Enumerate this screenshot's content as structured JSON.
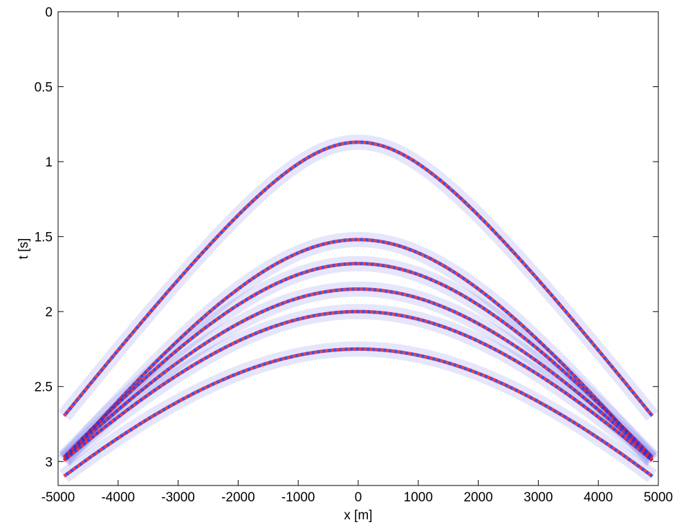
{
  "chart_data": {
    "type": "seismic",
    "xlabel": "x [m]",
    "ylabel": "t [s]",
    "xlim": [
      -5000,
      5000
    ],
    "xticks": [
      -5000,
      -4000,
      -3000,
      -2000,
      -1000,
      0,
      1000,
      2000,
      3000,
      4000,
      5000
    ],
    "ylim": [
      0,
      3.16
    ],
    "yticks": [
      0,
      0.5,
      1,
      1.5,
      2,
      2.5,
      3
    ],
    "y_reversed": true,
    "colors": [
      "#e8202a",
      "#2a30e0"
    ],
    "reflections": [
      {
        "t0": 0.87,
        "velocity": 1920
      },
      {
        "t0": 1.52,
        "velocity": 1900
      },
      {
        "t0": 1.68,
        "velocity": 2000
      },
      {
        "t0": 1.85,
        "velocity": 2100
      },
      {
        "t0": 2.0,
        "velocity": 2200
      },
      {
        "t0": 2.25,
        "velocity": 2300
      }
    ]
  }
}
